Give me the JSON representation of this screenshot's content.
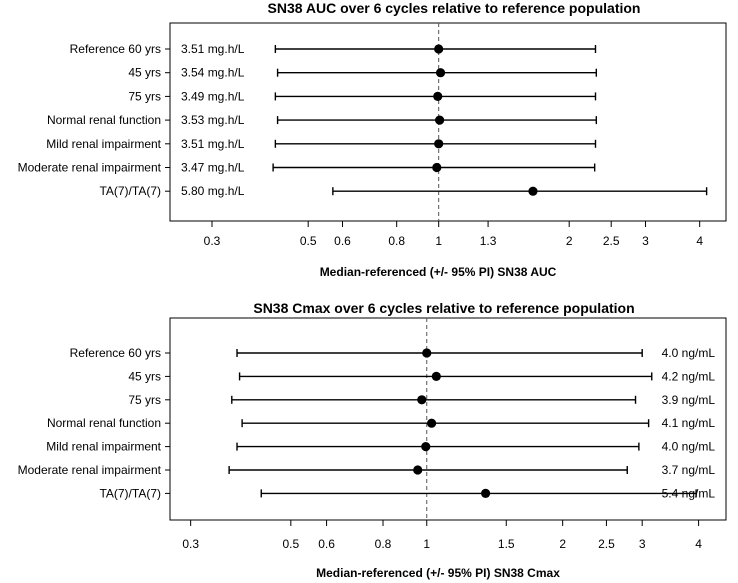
{
  "chart_data": [
    {
      "type": "forest",
      "title": "SN38 AUC over 6 cycles relative to reference population",
      "xlabel": "Median-referenced (+/- 95% PI) SN38 AUC",
      "xscale": "log",
      "xlim": [
        0.24,
        4.6
      ],
      "xticks": [
        "0.3",
        "0.5",
        "0.6",
        "0.8",
        "1",
        "1.3",
        "2",
        "2.5",
        "3",
        "4"
      ],
      "reference_line": 1,
      "value_label_position": "left",
      "categories": [
        "Reference 60 yrs",
        "45 yrs",
        "75 yrs",
        "Normal renal function",
        "Mild renal impairment",
        "Moderate renal impairment",
        "TA(7)/TA(7)"
      ],
      "value_labels": [
        "3.51 mg.h/L",
        "3.54 mg.h/L",
        "3.49 mg.h/L",
        "3.53 mg.h/L",
        "3.51 mg.h/L",
        "3.47 mg.h/L",
        "5.80 mg.h/L"
      ],
      "median": [
        1.0,
        1.01,
        0.995,
        1.005,
        1.0,
        0.99,
        1.65
      ],
      "lower": [
        0.42,
        0.425,
        0.42,
        0.425,
        0.42,
        0.415,
        0.57
      ],
      "upper": [
        2.3,
        2.31,
        2.3,
        2.31,
        2.3,
        2.29,
        4.15
      ]
    },
    {
      "type": "forest",
      "title": "SN38 Cmax over 6 cycles relative to reference population",
      "xlabel": "Median-referenced (+/- 95% PI) SN38 Cmax",
      "xscale": "log",
      "xlim": [
        0.27,
        4.6
      ],
      "xticks": [
        "0.3",
        "0.5",
        "0.6",
        "0.8",
        "1",
        "1.5",
        "2",
        "2.5",
        "3",
        "4"
      ],
      "reference_line": 1,
      "value_label_position": "right",
      "categories": [
        "Reference 60 yrs",
        "45 yrs",
        "75 yrs",
        "Normal renal function",
        "Mild renal impairment",
        "Moderate renal impairment",
        "TA(7)/TA(7)"
      ],
      "value_labels": [
        "4.0 ng/mL",
        "4.2 ng/mL",
        "3.9 ng/mL",
        "4.1 ng/mL",
        "4.0 ng/mL",
        "3.7 ng/mL",
        "5.4 ng/mL"
      ],
      "median": [
        1.0,
        1.05,
        0.975,
        1.025,
        0.995,
        0.955,
        1.35
      ],
      "lower": [
        0.38,
        0.385,
        0.37,
        0.39,
        0.38,
        0.365,
        0.43
      ],
      "upper": [
        3.0,
        3.15,
        2.9,
        3.1,
        2.95,
        2.78,
        3.95
      ]
    }
  ]
}
